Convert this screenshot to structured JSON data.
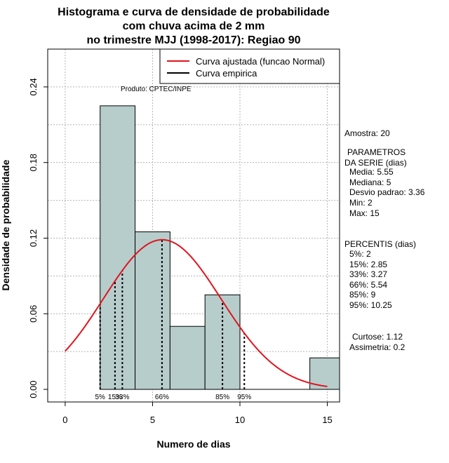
{
  "chart_data": {
    "type": "bar",
    "title_lines": [
      "Histograma e curva de densidade de probabilidade",
      "com chuva acima de 2 mm",
      "no trimestre MJJ (1998-2017): Regiao 90"
    ],
    "xlabel": "Numero de dias",
    "ylabel": "Densidade de probabilidade",
    "xlim": [
      -1,
      15.7
    ],
    "ylim": [
      -0.01,
      0.27
    ],
    "x_ticks": [
      0,
      5,
      10,
      15
    ],
    "y_ticks": [
      0.0,
      0.06,
      0.12,
      0.18,
      0.24
    ],
    "y_tick_labels": [
      "0.00",
      "0.06",
      "0.12",
      "0.18",
      "0.24"
    ],
    "grid": true,
    "bins": [
      {
        "from": 2,
        "to": 4,
        "density": 0.225
      },
      {
        "from": 4,
        "to": 6,
        "density": 0.125
      },
      {
        "from": 6,
        "to": 8,
        "density": 0.05
      },
      {
        "from": 8,
        "to": 10,
        "density": 0.075
      },
      {
        "from": 10,
        "to": 12,
        "density": 0.0
      },
      {
        "from": 12,
        "to": 14,
        "density": 0.0
      },
      {
        "from": 14,
        "to": 16,
        "density": 0.025
      }
    ],
    "normal_curve": {
      "mean": 5.55,
      "sd": 3.36,
      "x_from": 0,
      "x_to": 15
    },
    "percentile_lines": [
      {
        "label": "5%",
        "x": 2
      },
      {
        "label": "15%",
        "x": 2.85
      },
      {
        "label": "33%",
        "x": 3.27
      },
      {
        "label": "66%",
        "x": 5.54
      },
      {
        "label": "85%",
        "x": 9
      },
      {
        "label": "95%",
        "x": 10.25
      }
    ],
    "legend": [
      {
        "label": "Curva ajustada (funcao Normal)",
        "color": "#e0141e"
      },
      {
        "label": "Curva empirica",
        "color": "#000000"
      }
    ],
    "legend_position": "top-right",
    "colors": {
      "bar_fill": "#b7cdcc",
      "bar_stroke": "#000000",
      "curve": "#e0141e",
      "grid": "#b3b3b3"
    }
  },
  "annotations": {
    "produto": "Produto: CPTEC/INPE"
  },
  "side_panel": {
    "amostra": "Amostra: 20",
    "parametros_title_1": "PARAMETROS",
    "parametros_title_2": "DA SERIE (dias)",
    "media": "Media: 5.55",
    "mediana": "Mediana: 5",
    "desvio": "Desvio padrao: 3.36",
    "min": "Min: 2",
    "max": "Max: 15",
    "percentis_title": "PERCENTIS (dias)",
    "p5": "5%: 2",
    "p15": "15%: 2.85",
    "p33": "33%: 3.27",
    "p66": "66%: 5.54",
    "p85": "85%: 9",
    "p95": "95%: 10.25",
    "curtose": "Curtose: 1.12",
    "assimetria": "Assimetria: 0.2"
  }
}
